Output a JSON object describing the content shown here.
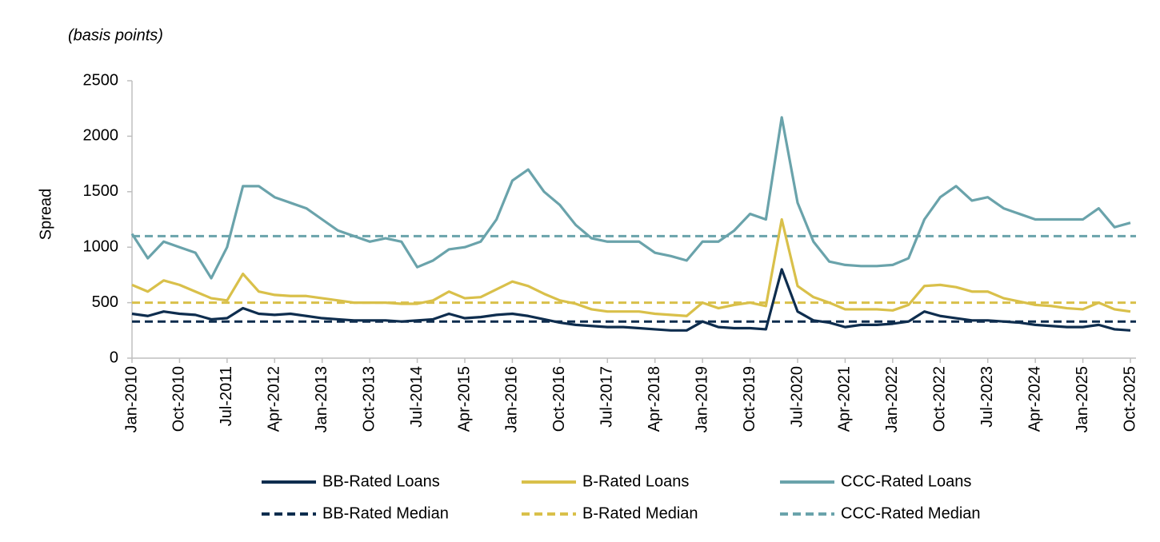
{
  "chart_data": {
    "type": "line",
    "annotation": "(basis points)",
    "y_label": "Spread",
    "categories": [
      "Jan-2010",
      null,
      null,
      "Oct-2010",
      null,
      null,
      "Jul-2011",
      null,
      null,
      "Apr-2012",
      null,
      null,
      "Jan-2013",
      null,
      null,
      "Oct-2013",
      null,
      null,
      "Jul-2014",
      null,
      null,
      "Apr-2015",
      null,
      null,
      "Jan-2016",
      null,
      null,
      "Oct-2016",
      null,
      null,
      "Jul-2017",
      null,
      null,
      "Apr-2018",
      null,
      null,
      "Jan-2019",
      null,
      null,
      "Oct-2019",
      null,
      null,
      "Jul-2020",
      null,
      null,
      "Apr-2021",
      null,
      null,
      "Jan-2022",
      null,
      null,
      "Oct-2022",
      null,
      null,
      "Jul-2023",
      null,
      null,
      "Apr-2024",
      null,
      null,
      "Jan-2025",
      null,
      null,
      "Oct-2025"
    ],
    "series": [
      {
        "name": "BB-Rated Loans",
        "color": "#0e2d4e",
        "values": [
          400,
          380,
          420,
          400,
          390,
          350,
          360,
          450,
          400,
          390,
          400,
          380,
          360,
          350,
          340,
          340,
          340,
          330,
          340,
          350,
          400,
          360,
          370,
          390,
          400,
          380,
          350,
          320,
          300,
          290,
          280,
          280,
          270,
          260,
          250,
          250,
          330,
          280,
          270,
          270,
          260,
          800,
          420,
          340,
          320,
          280,
          300,
          300,
          310,
          330,
          420,
          380,
          360,
          340,
          340,
          330,
          320,
          300,
          290,
          280,
          280,
          300,
          260,
          250
        ]
      },
      {
        "name": "B-Rated Loans",
        "color": "#d9c04a",
        "values": [
          660,
          600,
          700,
          660,
          600,
          540,
          520,
          760,
          600,
          570,
          560,
          560,
          540,
          520,
          500,
          500,
          500,
          490,
          490,
          520,
          600,
          540,
          550,
          620,
          690,
          650,
          580,
          520,
          490,
          440,
          420,
          420,
          420,
          400,
          390,
          380,
          500,
          450,
          480,
          500,
          470,
          1250,
          650,
          550,
          500,
          440,
          440,
          440,
          430,
          480,
          650,
          660,
          640,
          600,
          600,
          540,
          510,
          480,
          470,
          450,
          440,
          500,
          440,
          420
        ]
      },
      {
        "name": "CCC-Rated Loans",
        "color": "#6aa3ab",
        "values": [
          1120,
          900,
          1050,
          1000,
          950,
          720,
          1000,
          1550,
          1550,
          1450,
          1400,
          1350,
          1250,
          1150,
          1100,
          1050,
          1080,
          1050,
          820,
          880,
          980,
          1000,
          1050,
          1250,
          1600,
          1700,
          1500,
          1380,
          1200,
          1080,
          1050,
          1050,
          1050,
          950,
          920,
          880,
          1050,
          1050,
          1150,
          1300,
          1250,
          2170,
          1400,
          1050,
          870,
          840,
          830,
          830,
          840,
          900,
          1250,
          1450,
          1550,
          1420,
          1450,
          1350,
          1300,
          1250,
          1250,
          1250,
          1250,
          1350,
          1180,
          1220
        ]
      }
    ],
    "medians": [
      {
        "name": "BB-Rated Median",
        "color": "#0e2d4e",
        "value": 330
      },
      {
        "name": "B-Rated Median",
        "color": "#d9c04a",
        "value": 500
      },
      {
        "name": "CCC-Rated Median",
        "color": "#6aa3ab",
        "value": 1100
      }
    ],
    "ylim": [
      0,
      2500
    ],
    "yticks": [
      0,
      500,
      1000,
      1500,
      2000,
      2500
    ],
    "grid": false
  }
}
